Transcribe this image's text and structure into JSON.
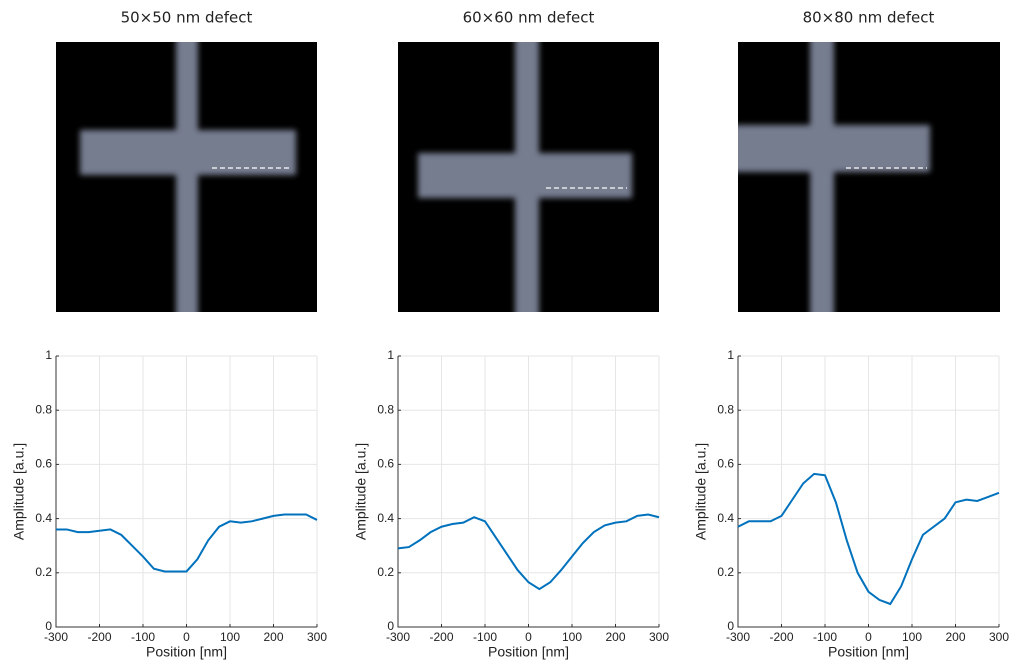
{
  "chart_data": [
    {
      "type": "line",
      "title": "50×50 nm defect",
      "xlabel": "Position [nm]",
      "ylabel": "Amplitude [a.u.]",
      "x": [
        -300,
        -275,
        -250,
        -225,
        -200,
        -175,
        -150,
        -125,
        -100,
        -75,
        -50,
        -25,
        0,
        25,
        50,
        75,
        100,
        125,
        150,
        175,
        200,
        225,
        250,
        275,
        300
      ],
      "values": [
        0.36,
        0.36,
        0.35,
        0.35,
        0.355,
        0.36,
        0.34,
        0.3,
        0.26,
        0.215,
        0.205,
        0.205,
        0.205,
        0.25,
        0.32,
        0.37,
        0.39,
        0.385,
        0.39,
        0.4,
        0.41,
        0.415,
        0.415,
        0.415,
        0.395
      ],
      "color": "#0072bd",
      "xlim": [
        -300,
        300
      ],
      "ylim": [
        0,
        1
      ],
      "xticks": [
        -300,
        -200,
        -100,
        0,
        100,
        200,
        300
      ],
      "yticks": [
        0,
        0.2,
        0.4,
        0.6,
        0.8,
        1
      ],
      "grid": true
    },
    {
      "type": "line",
      "title": "60×60 nm defect",
      "xlabel": "Position [nm]",
      "ylabel": "Amplitude [a.u.]",
      "x": [
        -300,
        -275,
        -250,
        -225,
        -200,
        -175,
        -150,
        -125,
        -100,
        -75,
        -50,
        -25,
        0,
        25,
        50,
        75,
        100,
        125,
        150,
        175,
        200,
        225,
        250,
        275,
        300
      ],
      "values": [
        0.29,
        0.295,
        0.32,
        0.35,
        0.37,
        0.38,
        0.385,
        0.405,
        0.39,
        0.33,
        0.27,
        0.21,
        0.165,
        0.14,
        0.165,
        0.21,
        0.26,
        0.31,
        0.35,
        0.375,
        0.385,
        0.39,
        0.41,
        0.415,
        0.405
      ],
      "color": "#0072bd",
      "xlim": [
        -300,
        300
      ],
      "ylim": [
        0,
        1
      ],
      "xticks": [
        -300,
        -200,
        -100,
        0,
        100,
        200,
        300
      ],
      "yticks": [
        0,
        0.2,
        0.4,
        0.6,
        0.8,
        1
      ],
      "grid": true
    },
    {
      "type": "line",
      "title": "80×80 nm defect",
      "xlabel": "Position [nm]",
      "ylabel": "Amplitude [a.u.]",
      "x": [
        -300,
        -275,
        -250,
        -225,
        -200,
        -175,
        -150,
        -125,
        -100,
        -75,
        -50,
        -25,
        0,
        25,
        50,
        75,
        100,
        125,
        150,
        175,
        200,
        225,
        250,
        275,
        300
      ],
      "values": [
        0.37,
        0.39,
        0.39,
        0.39,
        0.41,
        0.47,
        0.53,
        0.565,
        0.56,
        0.46,
        0.32,
        0.2,
        0.13,
        0.1,
        0.085,
        0.15,
        0.25,
        0.34,
        0.37,
        0.4,
        0.46,
        0.47,
        0.465,
        0.48,
        0.495
      ],
      "color": "#0072bd",
      "xlim": [
        -300,
        300
      ],
      "ylim": [
        0,
        1
      ],
      "xticks": [
        -300,
        -200,
        -100,
        0,
        100,
        200,
        300
      ],
      "yticks": [
        0,
        0.2,
        0.4,
        0.6,
        0.8,
        1
      ],
      "grid": true
    }
  ]
}
